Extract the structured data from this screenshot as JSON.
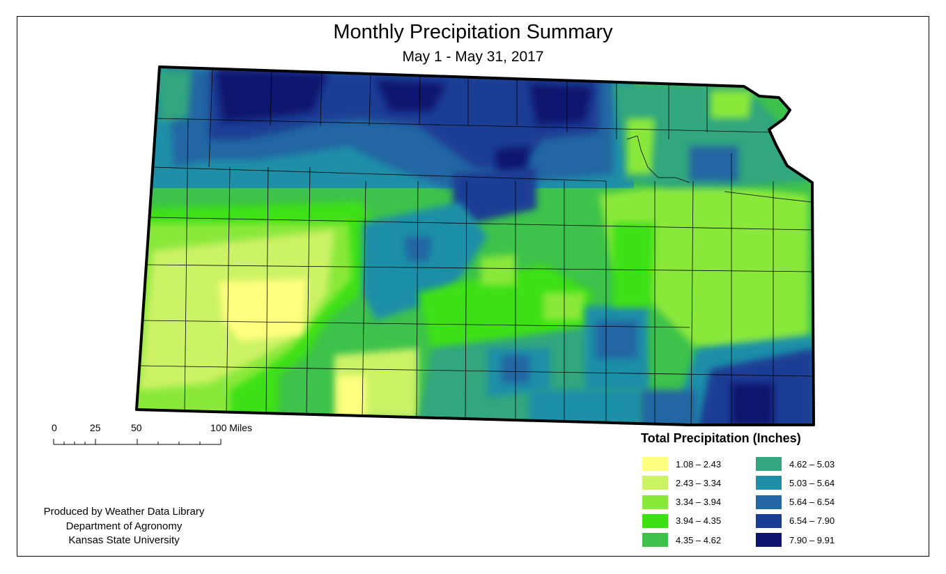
{
  "title": "Monthly Precipitation Summary",
  "subtitle": "May 1 - May 31, 2017",
  "scale": {
    "ticks": [
      "0",
      "25",
      "50",
      "100 Miles"
    ]
  },
  "credits": [
    "Produced by Weather Data Library",
    "Department of Agronomy",
    "Kansas State University"
  ],
  "legend": {
    "title": "Total Precipitation (Inches)",
    "items": [
      {
        "label": "1.08 – 2.43",
        "color": "#ffff80"
      },
      {
        "label": "2.43 – 3.34",
        "color": "#ccf266"
      },
      {
        "label": "3.34 – 3.94",
        "color": "#8ae83a"
      },
      {
        "label": "3.94 – 4.35",
        "color": "#3ce014"
      },
      {
        "label": "4.35 – 4.62",
        "color": "#3dc24b"
      },
      {
        "label": "4.62 – 5.03",
        "color": "#33a67e"
      },
      {
        "label": "5.03 – 5.64",
        "color": "#1f8fa8"
      },
      {
        "label": "5.64 – 6.54",
        "color": "#2266a3"
      },
      {
        "label": "6.54 – 7.90",
        "color": "#1a3d94"
      },
      {
        "label": "7.90 – 9.91",
        "color": "#0b1470"
      }
    ]
  }
}
